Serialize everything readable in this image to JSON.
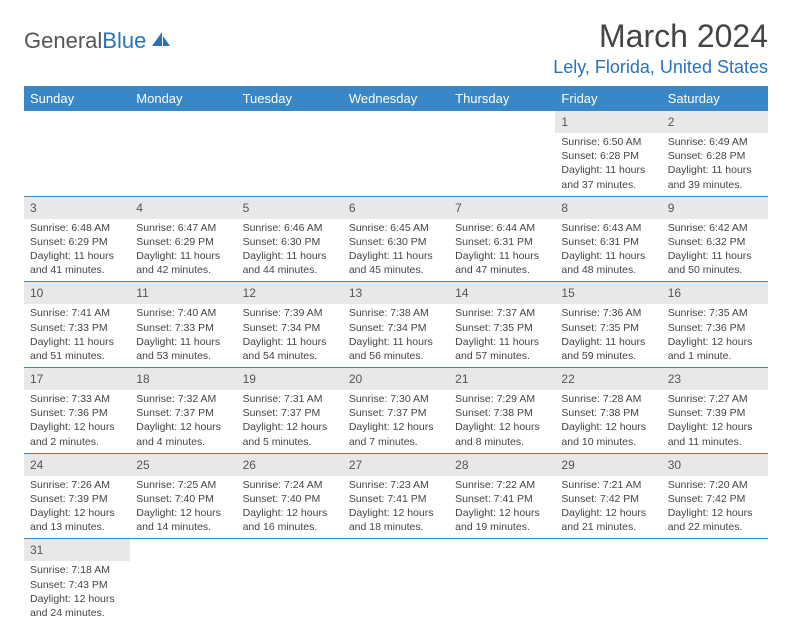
{
  "logo": {
    "text1": "General",
    "text2": "Blue"
  },
  "title": "March 2024",
  "location": "Lely, Florida, United States",
  "colors": {
    "header_bg": "#3a87c8",
    "header_text": "#ffffff",
    "accent": "#2a73b8",
    "daynum_bg": "#e8e8e8",
    "text": "#444444"
  },
  "weekdays": [
    "Sunday",
    "Monday",
    "Tuesday",
    "Wednesday",
    "Thursday",
    "Friday",
    "Saturday"
  ],
  "weeks": [
    [
      {
        "n": "",
        "sr": "",
        "ss": "",
        "dl": ""
      },
      {
        "n": "",
        "sr": "",
        "ss": "",
        "dl": ""
      },
      {
        "n": "",
        "sr": "",
        "ss": "",
        "dl": ""
      },
      {
        "n": "",
        "sr": "",
        "ss": "",
        "dl": ""
      },
      {
        "n": "",
        "sr": "",
        "ss": "",
        "dl": ""
      },
      {
        "n": "1",
        "sr": "Sunrise: 6:50 AM",
        "ss": "Sunset: 6:28 PM",
        "dl": "Daylight: 11 hours and 37 minutes."
      },
      {
        "n": "2",
        "sr": "Sunrise: 6:49 AM",
        "ss": "Sunset: 6:28 PM",
        "dl": "Daylight: 11 hours and 39 minutes."
      }
    ],
    [
      {
        "n": "3",
        "sr": "Sunrise: 6:48 AM",
        "ss": "Sunset: 6:29 PM",
        "dl": "Daylight: 11 hours and 41 minutes."
      },
      {
        "n": "4",
        "sr": "Sunrise: 6:47 AM",
        "ss": "Sunset: 6:29 PM",
        "dl": "Daylight: 11 hours and 42 minutes."
      },
      {
        "n": "5",
        "sr": "Sunrise: 6:46 AM",
        "ss": "Sunset: 6:30 PM",
        "dl": "Daylight: 11 hours and 44 minutes."
      },
      {
        "n": "6",
        "sr": "Sunrise: 6:45 AM",
        "ss": "Sunset: 6:30 PM",
        "dl": "Daylight: 11 hours and 45 minutes."
      },
      {
        "n": "7",
        "sr": "Sunrise: 6:44 AM",
        "ss": "Sunset: 6:31 PM",
        "dl": "Daylight: 11 hours and 47 minutes."
      },
      {
        "n": "8",
        "sr": "Sunrise: 6:43 AM",
        "ss": "Sunset: 6:31 PM",
        "dl": "Daylight: 11 hours and 48 minutes."
      },
      {
        "n": "9",
        "sr": "Sunrise: 6:42 AM",
        "ss": "Sunset: 6:32 PM",
        "dl": "Daylight: 11 hours and 50 minutes."
      }
    ],
    [
      {
        "n": "10",
        "sr": "Sunrise: 7:41 AM",
        "ss": "Sunset: 7:33 PM",
        "dl": "Daylight: 11 hours and 51 minutes."
      },
      {
        "n": "11",
        "sr": "Sunrise: 7:40 AM",
        "ss": "Sunset: 7:33 PM",
        "dl": "Daylight: 11 hours and 53 minutes."
      },
      {
        "n": "12",
        "sr": "Sunrise: 7:39 AM",
        "ss": "Sunset: 7:34 PM",
        "dl": "Daylight: 11 hours and 54 minutes."
      },
      {
        "n": "13",
        "sr": "Sunrise: 7:38 AM",
        "ss": "Sunset: 7:34 PM",
        "dl": "Daylight: 11 hours and 56 minutes."
      },
      {
        "n": "14",
        "sr": "Sunrise: 7:37 AM",
        "ss": "Sunset: 7:35 PM",
        "dl": "Daylight: 11 hours and 57 minutes."
      },
      {
        "n": "15",
        "sr": "Sunrise: 7:36 AM",
        "ss": "Sunset: 7:35 PM",
        "dl": "Daylight: 11 hours and 59 minutes."
      },
      {
        "n": "16",
        "sr": "Sunrise: 7:35 AM",
        "ss": "Sunset: 7:36 PM",
        "dl": "Daylight: 12 hours and 1 minute."
      }
    ],
    [
      {
        "n": "17",
        "sr": "Sunrise: 7:33 AM",
        "ss": "Sunset: 7:36 PM",
        "dl": "Daylight: 12 hours and 2 minutes."
      },
      {
        "n": "18",
        "sr": "Sunrise: 7:32 AM",
        "ss": "Sunset: 7:37 PM",
        "dl": "Daylight: 12 hours and 4 minutes."
      },
      {
        "n": "19",
        "sr": "Sunrise: 7:31 AM",
        "ss": "Sunset: 7:37 PM",
        "dl": "Daylight: 12 hours and 5 minutes."
      },
      {
        "n": "20",
        "sr": "Sunrise: 7:30 AM",
        "ss": "Sunset: 7:37 PM",
        "dl": "Daylight: 12 hours and 7 minutes."
      },
      {
        "n": "21",
        "sr": "Sunrise: 7:29 AM",
        "ss": "Sunset: 7:38 PM",
        "dl": "Daylight: 12 hours and 8 minutes."
      },
      {
        "n": "22",
        "sr": "Sunrise: 7:28 AM",
        "ss": "Sunset: 7:38 PM",
        "dl": "Daylight: 12 hours and 10 minutes."
      },
      {
        "n": "23",
        "sr": "Sunrise: 7:27 AM",
        "ss": "Sunset: 7:39 PM",
        "dl": "Daylight: 12 hours and 11 minutes."
      }
    ],
    [
      {
        "n": "24",
        "sr": "Sunrise: 7:26 AM",
        "ss": "Sunset: 7:39 PM",
        "dl": "Daylight: 12 hours and 13 minutes."
      },
      {
        "n": "25",
        "sr": "Sunrise: 7:25 AM",
        "ss": "Sunset: 7:40 PM",
        "dl": "Daylight: 12 hours and 14 minutes."
      },
      {
        "n": "26",
        "sr": "Sunrise: 7:24 AM",
        "ss": "Sunset: 7:40 PM",
        "dl": "Daylight: 12 hours and 16 minutes."
      },
      {
        "n": "27",
        "sr": "Sunrise: 7:23 AM",
        "ss": "Sunset: 7:41 PM",
        "dl": "Daylight: 12 hours and 18 minutes."
      },
      {
        "n": "28",
        "sr": "Sunrise: 7:22 AM",
        "ss": "Sunset: 7:41 PM",
        "dl": "Daylight: 12 hours and 19 minutes."
      },
      {
        "n": "29",
        "sr": "Sunrise: 7:21 AM",
        "ss": "Sunset: 7:42 PM",
        "dl": "Daylight: 12 hours and 21 minutes."
      },
      {
        "n": "30",
        "sr": "Sunrise: 7:20 AM",
        "ss": "Sunset: 7:42 PM",
        "dl": "Daylight: 12 hours and 22 minutes."
      }
    ],
    [
      {
        "n": "31",
        "sr": "Sunrise: 7:18 AM",
        "ss": "Sunset: 7:43 PM",
        "dl": "Daylight: 12 hours and 24 minutes."
      },
      {
        "n": "",
        "sr": "",
        "ss": "",
        "dl": ""
      },
      {
        "n": "",
        "sr": "",
        "ss": "",
        "dl": ""
      },
      {
        "n": "",
        "sr": "",
        "ss": "",
        "dl": ""
      },
      {
        "n": "",
        "sr": "",
        "ss": "",
        "dl": ""
      },
      {
        "n": "",
        "sr": "",
        "ss": "",
        "dl": ""
      },
      {
        "n": "",
        "sr": "",
        "ss": "",
        "dl": ""
      }
    ]
  ]
}
